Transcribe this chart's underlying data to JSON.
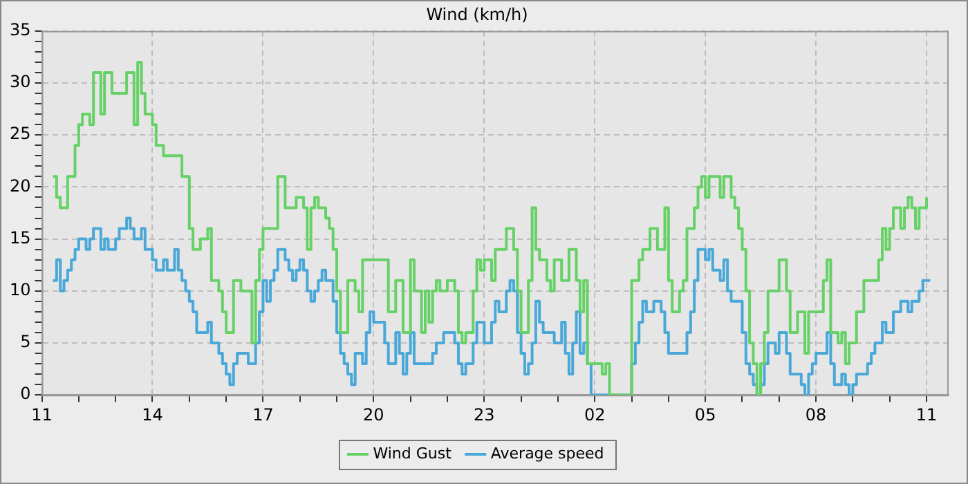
{
  "chart_data": {
    "type": "step",
    "title": "Wind (km/h)",
    "xlim": [
      "--01-01T11:00",
      "--01-02T11:36"
    ],
    "xticks": [
      {
        "value": "--01-01T11:00",
        "label": "11"
      },
      {
        "value": "--01-01T12:00",
        "label": null
      },
      {
        "value": "--01-01T13:00",
        "label": null
      },
      {
        "value": "--01-01T14:00",
        "label": "14"
      },
      {
        "value": "--01-01T15:00",
        "label": null
      },
      {
        "value": "--01-01T16:00",
        "label": null
      },
      {
        "value": "--01-01T17:00",
        "label": "17"
      },
      {
        "value": "--01-01T18:00",
        "label": null
      },
      {
        "value": "--01-01T19:00",
        "label": null
      },
      {
        "value": "--01-01T20:00",
        "label": "20"
      },
      {
        "value": "--01-01T21:00",
        "label": null
      },
      {
        "value": "--01-01T22:00",
        "label": null
      },
      {
        "value": "--01-01T23:00",
        "label": "23"
      },
      {
        "value": "--01-02T00:00",
        "label": null
      },
      {
        "value": "--01-02T01:00",
        "label": null
      },
      {
        "value": "--01-02T02:00",
        "label": "02"
      },
      {
        "value": "--01-02T03:00",
        "label": null
      },
      {
        "value": "--01-02T04:00",
        "label": null
      },
      {
        "value": "--01-02T05:00",
        "label": "05"
      },
      {
        "value": "--01-02T06:00",
        "label": null
      },
      {
        "value": "--01-02T07:00",
        "label": null
      },
      {
        "value": "--01-02T08:00",
        "label": "08"
      },
      {
        "value": "--01-02T09:00",
        "label": null
      },
      {
        "value": "--01-02T10:00",
        "label": null
      },
      {
        "value": "--01-02T11:00",
        "label": "11"
      }
    ],
    "ylim": [
      0,
      35
    ],
    "yticks": [
      0,
      {
        "value": 1,
        "label": null
      },
      {
        "value": 2,
        "label": null
      },
      {
        "value": 3,
        "label": null
      },
      {
        "value": 4,
        "label": null
      },
      5,
      {
        "value": 6,
        "label": null
      },
      {
        "value": 7,
        "label": null
      },
      {
        "value": 8,
        "label": null
      },
      {
        "value": 9,
        "label": null
      },
      10,
      {
        "value": 11,
        "label": null
      },
      {
        "value": 12,
        "label": null
      },
      {
        "value": 13,
        "label": null
      },
      {
        "value": 14,
        "label": null
      },
      15,
      {
        "value": 16,
        "label": null
      },
      {
        "value": 17,
        "label": null
      },
      {
        "value": 18,
        "label": null
      },
      {
        "value": 19,
        "label": null
      },
      20,
      {
        "value": 21,
        "label": null
      },
      {
        "value": 22,
        "label": null
      },
      {
        "value": 23,
        "label": null
      },
      {
        "value": 24,
        "label": null
      },
      25,
      {
        "value": 26,
        "label": null
      },
      {
        "value": 27,
        "label": null
      },
      {
        "value": 28,
        "label": null
      },
      {
        "value": 29,
        "label": null
      },
      30,
      {
        "value": 31,
        "label": null
      },
      {
        "value": 32,
        "label": null
      },
      {
        "value": 33,
        "label": null
      },
      {
        "value": 34,
        "label": null
      },
      35
    ],
    "grid": true,
    "legend": "bottom",
    "marker": "none",
    "line_style": "solid",
    "series": [
      {
        "name": "Wind Gust",
        "color": "#66d166",
        "x": [
          "--01-01T11:18",
          "--01-01T11:24",
          "--01-01T11:30",
          "--01-01T11:42",
          "--01-01T11:54",
          "--01-01T12:00",
          "--01-01T12:06",
          "--01-01T12:18",
          "--01-01T12:24",
          "--01-01T12:36",
          "--01-01T12:42",
          "--01-01T12:54",
          "--01-01T13:18",
          "--01-01T13:30",
          "--01-01T13:36",
          "--01-01T13:42",
          "--01-01T13:48",
          "--01-01T14:00",
          "--01-01T14:06",
          "--01-01T14:18",
          "--01-01T14:48",
          "--01-01T15:00",
          "--01-01T15:06",
          "--01-01T15:18",
          "--01-01T15:30",
          "--01-01T15:36",
          "--01-01T15:48",
          "--01-01T15:54",
          "--01-01T16:00",
          "--01-01T16:12",
          "--01-01T16:24",
          "--01-01T16:42",
          "--01-01T16:48",
          "--01-01T16:54",
          "--01-01T17:00",
          "--01-01T17:24",
          "--01-01T17:36",
          "--01-01T17:54",
          "--01-01T18:06",
          "--01-01T18:12",
          "--01-01T18:18",
          "--01-01T18:24",
          "--01-01T18:30",
          "--01-01T18:42",
          "--01-01T18:48",
          "--01-01T18:54",
          "--01-01T19:00",
          "--01-01T19:06",
          "--01-01T19:18",
          "--01-01T19:30",
          "--01-01T19:36",
          "--01-01T19:42",
          "--01-01T20:24",
          "--01-01T20:36",
          "--01-01T20:48",
          "--01-01T21:00",
          "--01-01T21:06",
          "--01-01T21:18",
          "--01-01T21:24",
          "--01-01T21:30",
          "--01-01T21:36",
          "--01-01T21:42",
          "--01-01T21:48",
          "--01-01T22:00",
          "--01-01T22:12",
          "--01-01T22:18",
          "--01-01T22:24",
          "--01-01T22:30",
          "--01-01T22:42",
          "--01-01T22:48",
          "--01-01T22:54",
          "--01-01T23:00",
          "--01-01T23:12",
          "--01-01T23:18",
          "--01-01T23:36",
          "--01-01T23:48",
          "--01-01T23:54",
          "--01-02T00:00",
          "--01-02T00:12",
          "--01-02T00:18",
          "--01-02T00:24",
          "--01-02T00:30",
          "--01-02T00:42",
          "--01-02T00:48",
          "--01-02T00:54",
          "--01-02T01:06",
          "--01-02T01:18",
          "--01-02T01:30",
          "--01-02T01:36",
          "--01-02T01:42",
          "--01-02T01:48",
          "--01-02T02:12",
          "--01-02T02:18",
          "--01-02T02:24",
          "--01-02T03:00",
          "--01-02T03:12",
          "--01-02T03:18",
          "--01-02T03:30",
          "--01-02T03:42",
          "--01-02T03:54",
          "--01-02T04:00",
          "--01-02T04:06",
          "--01-02T04:18",
          "--01-02T04:24",
          "--01-02T04:30",
          "--01-02T04:42",
          "--01-02T04:48",
          "--01-02T04:54",
          "--01-02T05:00",
          "--01-02T05:06",
          "--01-02T05:24",
          "--01-02T05:30",
          "--01-02T05:42",
          "--01-02T05:48",
          "--01-02T05:54",
          "--01-02T06:00",
          "--01-02T06:06",
          "--01-02T06:12",
          "--01-02T06:18",
          "--01-02T06:24",
          "--01-02T06:30",
          "--01-02T06:36",
          "--01-02T06:42",
          "--01-02T07:00",
          "--01-02T07:12",
          "--01-02T07:18",
          "--01-02T07:30",
          "--01-02T07:42",
          "--01-02T07:48",
          "--01-02T08:12",
          "--01-02T08:18",
          "--01-02T08:24",
          "--01-02T08:36",
          "--01-02T08:42",
          "--01-02T08:48",
          "--01-02T08:54",
          "--01-02T09:06",
          "--01-02T09:18",
          "--01-02T09:42",
          "--01-02T09:48",
          "--01-02T09:54",
          "--01-02T10:00",
          "--01-02T10:06",
          "--01-02T10:18",
          "--01-02T10:24",
          "--01-02T10:30",
          "--01-02T10:36",
          "--01-02T10:42",
          "--01-02T10:48",
          "--01-02T11:00"
        ],
        "values": [
          21,
          19,
          18,
          21,
          24,
          26,
          27,
          26,
          31,
          27,
          31,
          29,
          31,
          26,
          32,
          29,
          27,
          26,
          24,
          23,
          21,
          16,
          14,
          15,
          16,
          11,
          10,
          8,
          6,
          11,
          10,
          5,
          11,
          14,
          16,
          21,
          18,
          19,
          18,
          14,
          18,
          19,
          18,
          17,
          16,
          14,
          10,
          6,
          11,
          10,
          8,
          13,
          8,
          11,
          6,
          13,
          10,
          6,
          10,
          7,
          10,
          11,
          10,
          11,
          10,
          6,
          5,
          6,
          10,
          13,
          12,
          13,
          11,
          14,
          16,
          14,
          10,
          6,
          11,
          18,
          14,
          13,
          11,
          10,
          13,
          11,
          14,
          11,
          8,
          11,
          3,
          2,
          3,
          0,
          11,
          13,
          14,
          16,
          14,
          18,
          11,
          8,
          10,
          11,
          16,
          18,
          20,
          21,
          19,
          21,
          19,
          21,
          19,
          18,
          16,
          14,
          10,
          5,
          3,
          0,
          3,
          6,
          10,
          13,
          10,
          6,
          8,
          4,
          8,
          11,
          13,
          6,
          5,
          6,
          3,
          5,
          8,
          11,
          13,
          16,
          14,
          16,
          18,
          16,
          18,
          19,
          18,
          16,
          18,
          19
        ]
      },
      {
        "name": "Average speed",
        "color": "#4aa8d8",
        "x": [
          "--01-01T11:18",
          "--01-01T11:24",
          "--01-01T11:30",
          "--01-01T11:36",
          "--01-01T11:42",
          "--01-01T11:48",
          "--01-01T11:54",
          "--01-01T12:00",
          "--01-01T12:12",
          "--01-01T12:18",
          "--01-01T12:24",
          "--01-01T12:36",
          "--01-01T12:42",
          "--01-01T12:48",
          "--01-01T13:00",
          "--01-01T13:06",
          "--01-01T13:18",
          "--01-01T13:24",
          "--01-01T13:30",
          "--01-01T13:42",
          "--01-01T13:48",
          "--01-01T14:00",
          "--01-01T14:06",
          "--01-01T14:18",
          "--01-01T14:24",
          "--01-01T14:36",
          "--01-01T14:42",
          "--01-01T14:48",
          "--01-01T14:54",
          "--01-01T15:00",
          "--01-01T15:06",
          "--01-01T15:12",
          "--01-01T15:30",
          "--01-01T15:36",
          "--01-01T15:48",
          "--01-01T15:54",
          "--01-01T16:00",
          "--01-01T16:06",
          "--01-01T16:12",
          "--01-01T16:18",
          "--01-01T16:36",
          "--01-01T16:48",
          "--01-01T16:54",
          "--01-01T17:00",
          "--01-01T17:06",
          "--01-01T17:12",
          "--01-01T17:18",
          "--01-01T17:24",
          "--01-01T17:36",
          "--01-01T17:42",
          "--01-01T17:48",
          "--01-01T17:54",
          "--01-01T18:00",
          "--01-01T18:06",
          "--01-01T18:12",
          "--01-01T18:18",
          "--01-01T18:24",
          "--01-01T18:30",
          "--01-01T18:36",
          "--01-01T18:42",
          "--01-01T18:54",
          "--01-01T19:00",
          "--01-01T19:06",
          "--01-01T19:12",
          "--01-01T19:18",
          "--01-01T19:24",
          "--01-01T19:30",
          "--01-01T19:42",
          "--01-01T19:48",
          "--01-01T19:54",
          "--01-01T20:00",
          "--01-01T20:18",
          "--01-01T20:24",
          "--01-01T20:36",
          "--01-01T20:42",
          "--01-01T20:48",
          "--01-01T20:54",
          "--01-01T21:00",
          "--01-01T21:06",
          "--01-01T21:36",
          "--01-01T21:42",
          "--01-01T21:54",
          "--01-01T22:12",
          "--01-01T22:18",
          "--01-01T22:24",
          "--01-01T22:30",
          "--01-01T22:42",
          "--01-01T22:48",
          "--01-01T23:00",
          "--01-01T23:12",
          "--01-01T23:18",
          "--01-01T23:24",
          "--01-01T23:36",
          "--01-01T23:42",
          "--01-01T23:48",
          "--01-01T23:54",
          "--01-02T00:00",
          "--01-02T00:06",
          "--01-02T00:12",
          "--01-02T00:18",
          "--01-02T00:24",
          "--01-02T00:30",
          "--01-02T00:36",
          "--01-02T00:54",
          "--01-02T01:06",
          "--01-02T01:12",
          "--01-02T01:18",
          "--01-02T01:24",
          "--01-02T01:30",
          "--01-02T01:36",
          "--01-02T01:42",
          "--01-02T01:48",
          "--01-02T01:54",
          "--01-02T03:00",
          "--01-02T03:06",
          "--01-02T03:12",
          "--01-02T03:18",
          "--01-02T03:24",
          "--01-02T03:36",
          "--01-02T03:48",
          "--01-02T03:54",
          "--01-02T04:00",
          "--01-02T04:30",
          "--01-02T04:36",
          "--01-02T04:42",
          "--01-02T04:48",
          "--01-02T05:00",
          "--01-02T05:06",
          "--01-02T05:12",
          "--01-02T05:24",
          "--01-02T05:30",
          "--01-02T05:36",
          "--01-02T05:42",
          "--01-02T06:00",
          "--01-02T06:06",
          "--01-02T06:12",
          "--01-02T06:18",
          "--01-02T06:24",
          "--01-02T06:30",
          "--01-02T06:36",
          "--01-02T06:42",
          "--01-02T06:54",
          "--01-02T07:00",
          "--01-02T07:12",
          "--01-02T07:18",
          "--01-02T07:36",
          "--01-02T07:42",
          "--01-02T07:48",
          "--01-02T07:54",
          "--01-02T08:00",
          "--01-02T08:18",
          "--01-02T08:24",
          "--01-02T08:30",
          "--01-02T08:42",
          "--01-02T08:48",
          "--01-02T08:54",
          "--01-02T09:00",
          "--01-02T09:06",
          "--01-02T09:24",
          "--01-02T09:30",
          "--01-02T09:36",
          "--01-02T09:48",
          "--01-02T09:54",
          "--01-02T10:06",
          "--01-02T10:18",
          "--01-02T10:30",
          "--01-02T10:36",
          "--01-02T10:48",
          "--01-02T10:54",
          "--01-02T11:06"
        ],
        "values": [
          11,
          13,
          10,
          11,
          12,
          13,
          14,
          15,
          14,
          15,
          16,
          14,
          15,
          14,
          15,
          16,
          17,
          16,
          15,
          16,
          14,
          13,
          12,
          13,
          12,
          14,
          12,
          11,
          10,
          9,
          8,
          6,
          7,
          5,
          4,
          3,
          2,
          1,
          3,
          4,
          3,
          5,
          8,
          11,
          9,
          11,
          12,
          14,
          13,
          12,
          11,
          12,
          13,
          12,
          10,
          9,
          10,
          11,
          12,
          11,
          9,
          6,
          4,
          3,
          2,
          1,
          4,
          3,
          6,
          8,
          7,
          5,
          3,
          6,
          4,
          2,
          4,
          6,
          3,
          4,
          5,
          6,
          5,
          3,
          2,
          3,
          5,
          7,
          5,
          7,
          9,
          8,
          10,
          11,
          10,
          6,
          4,
          2,
          3,
          5,
          9,
          7,
          6,
          5,
          7,
          4,
          2,
          5,
          8,
          4,
          5,
          3,
          0,
          3,
          5,
          7,
          9,
          8,
          9,
          8,
          6,
          4,
          6,
          8,
          11,
          14,
          13,
          14,
          12,
          11,
          13,
          10,
          9,
          6,
          3,
          2,
          1,
          0,
          1,
          3,
          5,
          4,
          6,
          4,
          2,
          1,
          0,
          2,
          3,
          4,
          6,
          3,
          1,
          2,
          1,
          0,
          1,
          2,
          3,
          4,
          5,
          7,
          6,
          8,
          9,
          8,
          9,
          10,
          11,
          11
        ]
      }
    ]
  }
}
